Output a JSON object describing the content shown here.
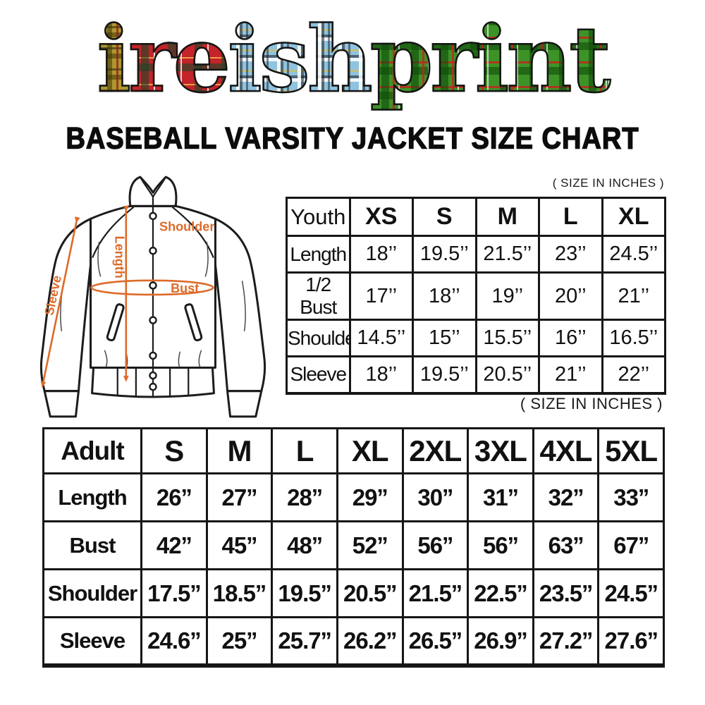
{
  "brand": {
    "logo_segments": [
      {
        "text": "i",
        "tartan": "gold-tartan"
      },
      {
        "text": "re",
        "tartan": "red-tartan"
      },
      {
        "text": "ish",
        "tartan": "blue-tartan"
      },
      {
        "text": "print",
        "tartan": "green-tartan"
      }
    ]
  },
  "title": "BASEBALL VARSITY JACKET SIZE CHART",
  "size_note": "( SIZE IN INCHES )",
  "diagram": {
    "accent_color": "#dd6b2a",
    "line_color": "#1c1c1c",
    "labels": {
      "shoulder": "Shoulder",
      "length": "Length",
      "bust": "Bust",
      "sleeve": "Sleeve"
    }
  },
  "youth_table": {
    "header": [
      "Youth",
      "XS",
      "S",
      "M",
      "L",
      "XL"
    ],
    "rows": [
      {
        "label": "Length",
        "values": [
          "18’’",
          "19.5’’",
          "21.5’’",
          "23’’",
          "24.5’’"
        ]
      },
      {
        "label": "1/2 Bust",
        "values": [
          "17’’",
          "18’’",
          "19’’",
          "20’’",
          "21’’"
        ]
      },
      {
        "label": "Shoulder",
        "values": [
          "14.5’’",
          "15’’",
          "15.5’’",
          "16’’",
          "16.5’’"
        ]
      },
      {
        "label": "Sleeve",
        "values": [
          "18’’",
          "19.5’’",
          "20.5’’",
          "21’’",
          "22’’"
        ]
      }
    ]
  },
  "adult_table": {
    "header": [
      "Adult",
      "S",
      "M",
      "L",
      "XL",
      "2XL",
      "3XL",
      "4XL",
      "5XL"
    ],
    "rows": [
      {
        "label": "Length",
        "values": [
          "26’’",
          "27’’",
          "28’’",
          "29’’",
          "30’’",
          "31’’",
          "32’’",
          "33’’"
        ]
      },
      {
        "label": "Bust",
        "values": [
          "42’’",
          "45’’",
          "48’’",
          "52’’",
          "56’’",
          "56’’",
          "63’’",
          "67’’"
        ]
      },
      {
        "label": "Shoulder",
        "values": [
          "17.5’’",
          "18.5’’",
          "19.5’’",
          "20.5’’",
          "21.5’’",
          "22.5’’",
          "23.5’’",
          "24.5’’"
        ]
      },
      {
        "label": "Sleeve",
        "values": [
          "24.6’’",
          "25’’",
          "25.7’’",
          "26.2’’",
          "26.5’’",
          "26.9’’",
          "27.2’’",
          "27.6’’"
        ]
      }
    ]
  }
}
